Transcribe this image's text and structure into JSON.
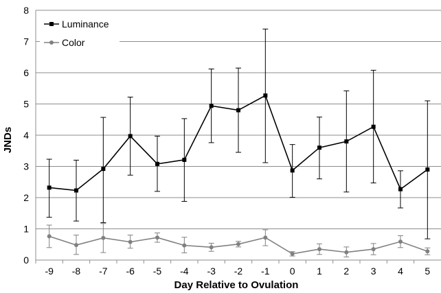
{
  "chart_data": {
    "type": "line",
    "xlabel": "Day Relative to Ovulation",
    "ylabel": "JNDs",
    "categories": [
      "-9",
      "-8",
      "-7",
      "-6",
      "-5",
      "-4",
      "-3",
      "-2",
      "-1",
      "0",
      "1",
      "2",
      "3",
      "4",
      "5"
    ],
    "ylim": [
      0,
      8
    ],
    "yticks": [
      0,
      1,
      2,
      3,
      4,
      5,
      6,
      7,
      8
    ],
    "grid": true,
    "legend_position": "top-left",
    "series": [
      {
        "name": "Luminance",
        "color": "#000000",
        "marker": "square",
        "values": [
          2.32,
          2.23,
          2.92,
          3.97,
          3.08,
          3.21,
          4.94,
          4.8,
          5.27,
          2.87,
          3.6,
          3.8,
          4.27,
          2.27,
          2.9
        ],
        "error_low": [
          1.37,
          1.25,
          1.2,
          2.72,
          2.2,
          1.88,
          3.76,
          3.45,
          3.12,
          2.01,
          2.6,
          2.18,
          2.47,
          1.67,
          0.68
        ],
        "error_high": [
          3.23,
          3.2,
          4.57,
          5.22,
          3.97,
          4.53,
          6.12,
          6.15,
          7.4,
          3.7,
          4.58,
          5.42,
          6.08,
          2.86,
          5.1
        ]
      },
      {
        "name": "Color",
        "color": "#808080",
        "marker": "circle",
        "values": [
          0.76,
          0.48,
          0.71,
          0.58,
          0.72,
          0.47,
          0.41,
          0.51,
          0.72,
          0.2,
          0.35,
          0.25,
          0.35,
          0.59,
          0.28
        ],
        "error_low": [
          0.4,
          0.18,
          0.24,
          0.38,
          0.57,
          0.23,
          0.28,
          0.42,
          0.46,
          0.13,
          0.18,
          0.1,
          0.17,
          0.4,
          0.17
        ],
        "error_high": [
          1.12,
          0.8,
          1.17,
          0.8,
          0.87,
          0.73,
          0.54,
          0.6,
          0.97,
          0.27,
          0.52,
          0.42,
          0.53,
          0.78,
          0.39
        ]
      }
    ]
  }
}
